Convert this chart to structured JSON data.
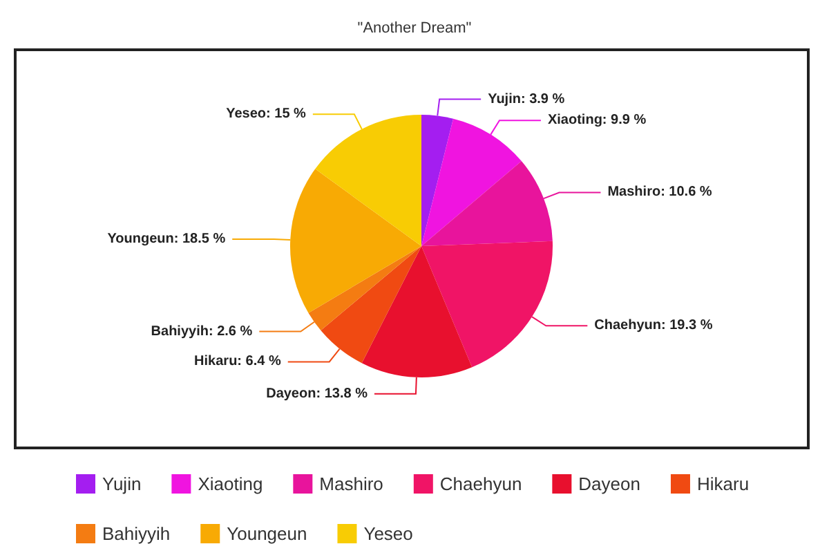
{
  "chart_data": {
    "type": "pie",
    "title": "\"Another Dream\"",
    "categories": [
      "Yujin",
      "Xiaoting",
      "Mashiro",
      "Chaehyun",
      "Dayeon",
      "Hikaru",
      "Bahiyyih",
      "Youngeun",
      "Yeseo"
    ],
    "values": [
      3.9,
      9.9,
      10.6,
      19.3,
      13.8,
      6.4,
      2.6,
      18.5,
      15
    ],
    "value_labels": [
      "Yujin: 3.9 %",
      "Xiaoting: 9.9 %",
      "Mashiro: 10.6 %",
      "Chaehyun: 19.3 %",
      "Dayeon: 13.8 %",
      "Hikaru: 6.4 %",
      "Bahiyyih: 2.6 %",
      "Youngeun: 18.5 %",
      "Yeseo: 15 %"
    ],
    "colors": [
      "#a41ef0",
      "#f014e0",
      "#e8149c",
      "#f01466",
      "#e8102e",
      "#f04a12",
      "#f47c12",
      "#f8aa04",
      "#f8cc04"
    ],
    "legend": "bottom"
  }
}
